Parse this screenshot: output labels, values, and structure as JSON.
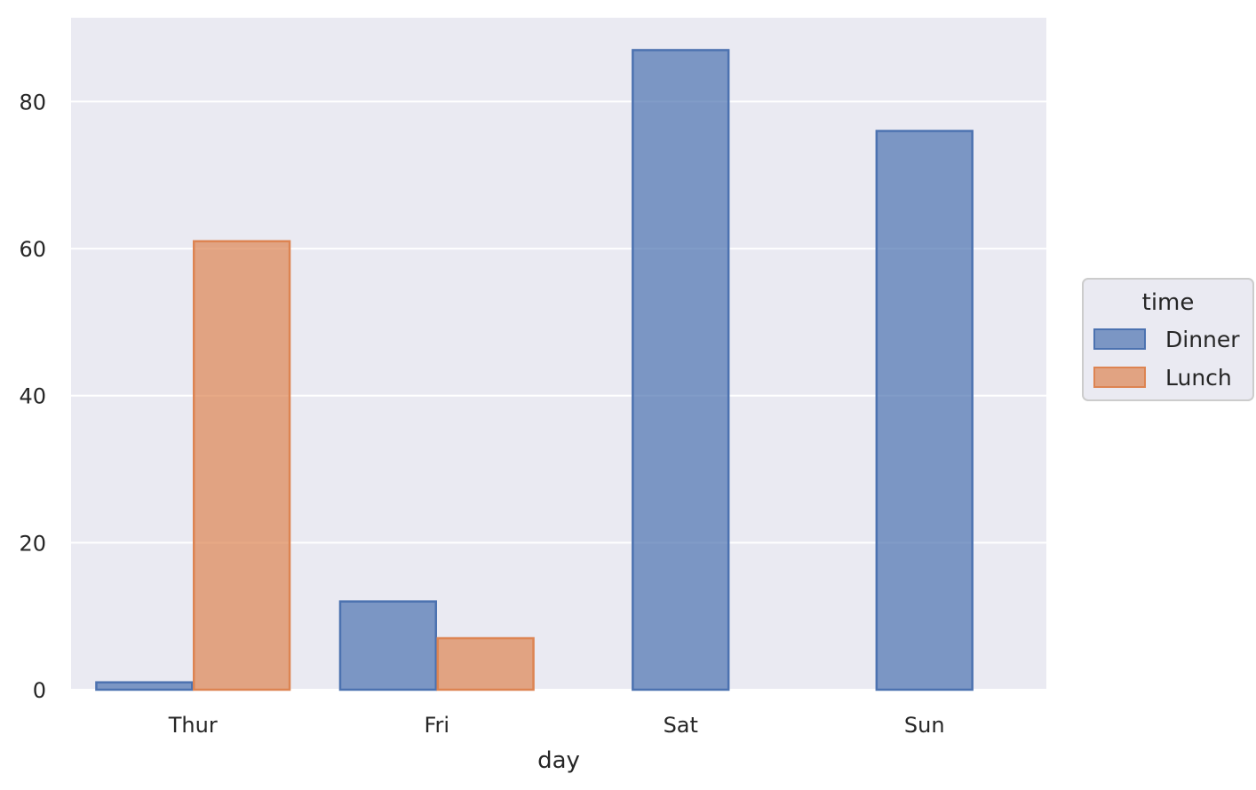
{
  "chart_data": {
    "type": "bar",
    "categories": [
      "Thur",
      "Fri",
      "Sat",
      "Sun"
    ],
    "xlabel": "day",
    "ylabel": "",
    "ylim": [
      0,
      91.4
    ],
    "yticks": [
      0,
      20,
      40,
      60,
      80
    ],
    "grid": true,
    "legend": {
      "title": "time",
      "placement": "right"
    },
    "series": [
      {
        "name": "Dinner",
        "color": "#4c72b0",
        "values": [
          1,
          12,
          87,
          76
        ]
      },
      {
        "name": "Lunch",
        "color": "#dd8452",
        "values": [
          61,
          7,
          0,
          0
        ]
      }
    ]
  }
}
